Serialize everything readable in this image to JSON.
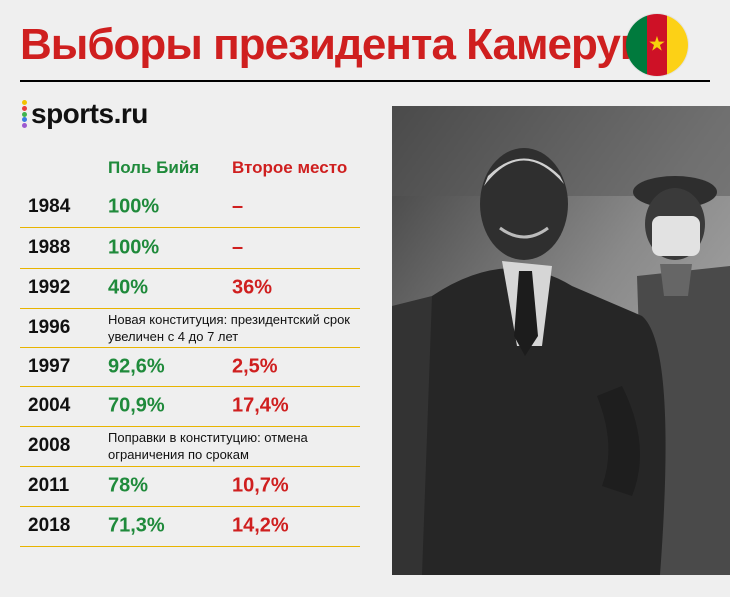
{
  "header": {
    "title": "Выборы президента Камеруна",
    "flag_colors": [
      "#007a3d",
      "#ce1126",
      "#fcd116"
    ],
    "flag_star": "★"
  },
  "logo": {
    "text": "sports.ru",
    "dot_colors": [
      "#f2c200",
      "#e83e3e",
      "#3fb34f",
      "#3b7be0",
      "#9b59d0"
    ]
  },
  "table": {
    "col_biya": "Поль Бийя",
    "col_second": "Второе место",
    "colors": {
      "biya": "#1f8a3b",
      "second": "#cf1f1f"
    },
    "rows": [
      {
        "year": "1984",
        "biya": "100%",
        "second": "–"
      },
      {
        "year": "1988",
        "biya": "100%",
        "second": "–"
      },
      {
        "year": "1992",
        "biya": "40%",
        "second": "36%"
      },
      {
        "year": "1996",
        "note": "Новая конституция: президентский срок увеличен с 4 до 7 лет"
      },
      {
        "year": "1997",
        "biya": "92,6%",
        "second": "2,5%"
      },
      {
        "year": "2004",
        "biya": "70,9%",
        "second": "17,4%"
      },
      {
        "year": "2008",
        "note": "Поправки в конституцию: отмена ограничения по срокам"
      },
      {
        "year": "2011",
        "biya": "78%",
        "second": "10,7%"
      },
      {
        "year": "2018",
        "biya": "71,3%",
        "second": "14,2%"
      }
    ]
  },
  "photo": {
    "icon": "president-portrait-image"
  }
}
